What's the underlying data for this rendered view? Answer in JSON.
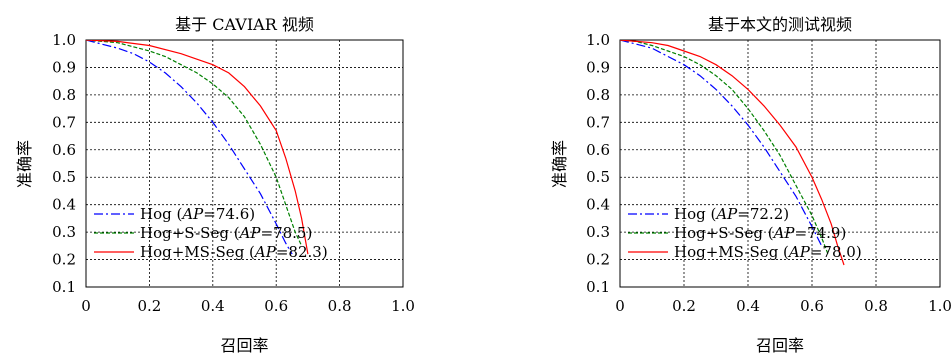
{
  "chart_data": [
    {
      "type": "line",
      "title": "基于 CAVIAR 视频",
      "xlabel": "召回率",
      "ylabel": "准确率",
      "xlim": [
        0,
        1.0
      ],
      "ylim": [
        0.1,
        1.0
      ],
      "x_ticks": [
        "0",
        "0.2",
        "0.4",
        "0.6",
        "0.8",
        "1.0"
      ],
      "y_ticks": [
        "0.1",
        "0.2",
        "0.3",
        "0.4",
        "0.5",
        "0.6",
        "0.7",
        "0.8",
        "0.9",
        "1.0"
      ],
      "grid": true,
      "legend_position": "bottom-left",
      "series": [
        {
          "name": "Hog",
          "ap_label": "AP",
          "ap_value": "=74.6)",
          "color": "#0000ff",
          "dash": "dashdot",
          "x": [
            0,
            0.05,
            0.1,
            0.15,
            0.2,
            0.25,
            0.3,
            0.35,
            0.4,
            0.45,
            0.5,
            0.55,
            0.6,
            0.63,
            0.65
          ],
          "y": [
            1.0,
            0.985,
            0.97,
            0.95,
            0.92,
            0.88,
            0.83,
            0.77,
            0.7,
            0.62,
            0.53,
            0.44,
            0.33,
            0.26,
            0.22
          ]
        },
        {
          "name": "Hog+S-Seg",
          "ap_label": "AP",
          "ap_value": "=78.5)",
          "color": "#008000",
          "dash": "dashed",
          "x": [
            0,
            0.1,
            0.2,
            0.25,
            0.3,
            0.35,
            0.4,
            0.45,
            0.5,
            0.55,
            0.6,
            0.63,
            0.66,
            0.68
          ],
          "y": [
            1.0,
            0.99,
            0.96,
            0.94,
            0.91,
            0.88,
            0.84,
            0.79,
            0.72,
            0.62,
            0.5,
            0.4,
            0.3,
            0.25
          ]
        },
        {
          "name": "Hog+MS-Seg",
          "ap_label": "AP",
          "ap_value": "=82.3)",
          "color": "#ff0000",
          "dash": "solid",
          "x": [
            0,
            0.1,
            0.2,
            0.3,
            0.35,
            0.4,
            0.45,
            0.5,
            0.55,
            0.6,
            0.63,
            0.66,
            0.68,
            0.7
          ],
          "y": [
            1.0,
            0.995,
            0.98,
            0.95,
            0.93,
            0.91,
            0.88,
            0.83,
            0.76,
            0.67,
            0.57,
            0.45,
            0.35,
            0.22
          ]
        }
      ]
    },
    {
      "type": "line",
      "title": "基于本文的测试视频",
      "xlabel": "召回率",
      "ylabel": "准确率",
      "xlim": [
        0,
        1.0
      ],
      "ylim": [
        0.1,
        1.0
      ],
      "x_ticks": [
        "0",
        "0.2",
        "0.4",
        "0.6",
        "0.8",
        "1.0"
      ],
      "y_ticks": [
        "0.1",
        "0.2",
        "0.3",
        "0.4",
        "0.5",
        "0.6",
        "0.7",
        "0.8",
        "0.9",
        "1.0"
      ],
      "grid": true,
      "legend_position": "bottom-left",
      "series": [
        {
          "name": "Hog",
          "ap_label": "AP",
          "ap_value": "=72.2)",
          "color": "#0000ff",
          "dash": "dashdot",
          "x": [
            0,
            0.05,
            0.1,
            0.15,
            0.2,
            0.25,
            0.3,
            0.35,
            0.4,
            0.45,
            0.5,
            0.55,
            0.6,
            0.63
          ],
          "y": [
            1.0,
            0.985,
            0.97,
            0.94,
            0.91,
            0.87,
            0.82,
            0.76,
            0.69,
            0.61,
            0.52,
            0.43,
            0.32,
            0.25
          ]
        },
        {
          "name": "Hog+S-Seg",
          "ap_label": "AP",
          "ap_value": "=74.9)",
          "color": "#008000",
          "dash": "dashed",
          "x": [
            0,
            0.05,
            0.1,
            0.15,
            0.2,
            0.25,
            0.3,
            0.35,
            0.4,
            0.45,
            0.5,
            0.55,
            0.6,
            0.63,
            0.65
          ],
          "y": [
            1.0,
            0.995,
            0.98,
            0.96,
            0.94,
            0.91,
            0.87,
            0.82,
            0.75,
            0.67,
            0.58,
            0.47,
            0.36,
            0.28,
            0.22
          ]
        },
        {
          "name": "Hog+MS-Seg",
          "ap_label": "AP",
          "ap_value": "=78.0)",
          "color": "#ff0000",
          "dash": "solid",
          "x": [
            0,
            0.1,
            0.15,
            0.2,
            0.25,
            0.3,
            0.35,
            0.4,
            0.45,
            0.5,
            0.55,
            0.6,
            0.63,
            0.66,
            0.68,
            0.7
          ],
          "y": [
            1.0,
            0.99,
            0.98,
            0.96,
            0.94,
            0.91,
            0.87,
            0.82,
            0.76,
            0.69,
            0.61,
            0.5,
            0.42,
            0.33,
            0.25,
            0.18
          ]
        }
      ]
    }
  ]
}
